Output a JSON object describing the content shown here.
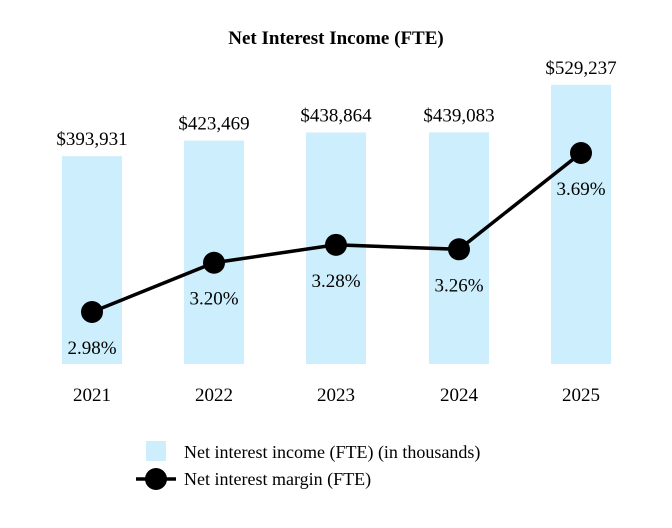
{
  "chart_data": {
    "type": "bar",
    "title": "Net Interest Income (FTE)",
    "categories": [
      "2021",
      "2022",
      "2023",
      "2024",
      "2025"
    ],
    "series": [
      {
        "name": "Net interest income (FTE) (in thousands)",
        "kind": "bar",
        "values": [
          393931,
          423469,
          438864,
          439083,
          529237
        ],
        "labels": [
          "$393,931",
          "$423,469",
          "$438,864",
          "$439,083",
          "$529,237"
        ],
        "color": "#cdeefc"
      },
      {
        "name": "Net interest margin (FTE)",
        "kind": "line",
        "values": [
          2.98,
          3.2,
          3.28,
          3.26,
          3.69
        ],
        "labels": [
          "2.98%",
          "3.20%",
          "3.28%",
          "3.26%",
          "3.69%"
        ],
        "color": "#000000"
      }
    ],
    "legend": [
      "Net interest income (FTE) (in thousands)",
      "Net interest margin (FTE)"
    ],
    "legend_position": "bottom",
    "grid": false
  }
}
